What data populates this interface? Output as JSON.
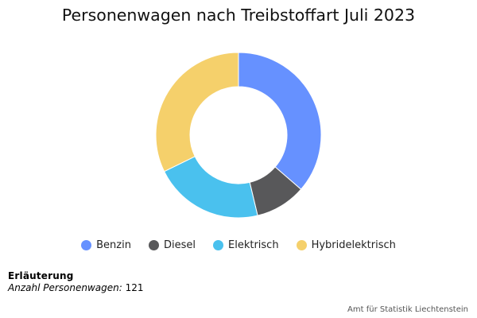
{
  "chart_data": {
    "type": "pie",
    "title": "Personenwagen nach Treibstoffart Juli 2023",
    "categories": [
      "Benzin",
      "Diesel",
      "Elektrisch",
      "Hybridelektrisch"
    ],
    "values": [
      44,
      12,
      26,
      39
    ],
    "colors": [
      "#6691ff",
      "#58585a",
      "#4ac1ee",
      "#f5d06b"
    ],
    "donut": true,
    "legend": "bottom"
  },
  "note": {
    "heading": "Erläuterung",
    "label": "Anzahl Personenwagen:",
    "value": "121"
  },
  "credit": "Amt für Statistik Liechtenstein"
}
